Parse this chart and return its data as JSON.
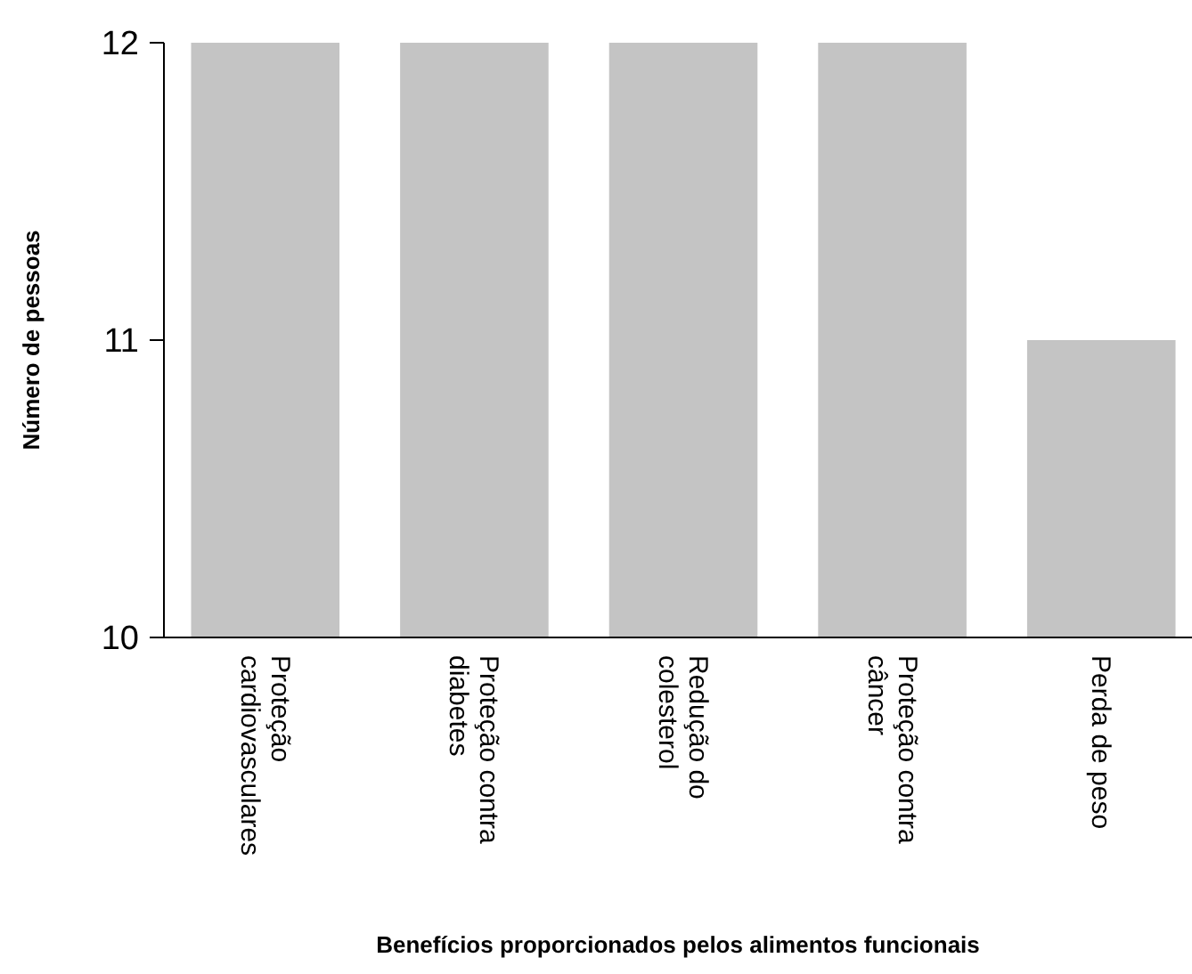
{
  "chart_data": {
    "type": "bar",
    "xlabel": "Benefícios proporcionados pelos alimentos funcionais",
    "ylabel": "Número de pessoas",
    "categories": [
      "Proteção cardiovasculares",
      "Proteção contra diabetes",
      "Redução do colesterol",
      "Proteção contra câncer",
      "Perda de peso"
    ],
    "values": [
      12,
      12,
      12,
      12,
      11
    ],
    "color": "#c4c4c4",
    "ylim": [
      10,
      12
    ],
    "yticks": [
      10,
      11,
      12
    ]
  }
}
